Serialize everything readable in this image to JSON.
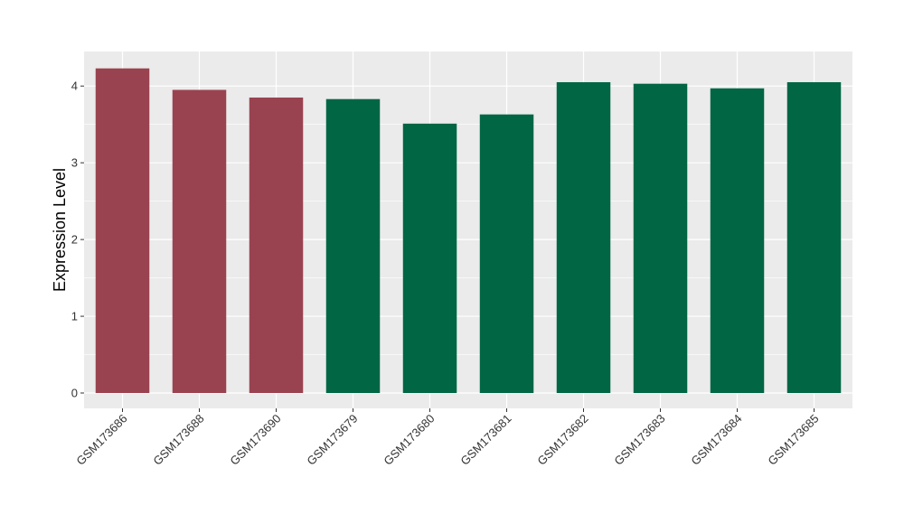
{
  "chart_data": {
    "type": "bar",
    "title": "",
    "xlabel": "",
    "ylabel": "Expression Level",
    "categories": [
      "GSM173686",
      "GSM173688",
      "GSM173690",
      "GSM173679",
      "GSM173680",
      "GSM173681",
      "GSM173682",
      "GSM173683",
      "GSM173684",
      "GSM173685"
    ],
    "values": [
      4.23,
      3.95,
      3.85,
      3.83,
      3.51,
      3.63,
      4.05,
      4.03,
      3.97,
      4.05
    ],
    "bar_colors": [
      "#9a4350",
      "#9a4350",
      "#9a4350",
      "#006644",
      "#006644",
      "#006644",
      "#006644",
      "#006644",
      "#006644",
      "#006644"
    ],
    "yticks": [
      0,
      1,
      2,
      3,
      4
    ],
    "ylim": [
      -0.2,
      4.45
    ],
    "grid": true,
    "panel_background": "#ebebeb",
    "grid_color": "#ffffff"
  }
}
